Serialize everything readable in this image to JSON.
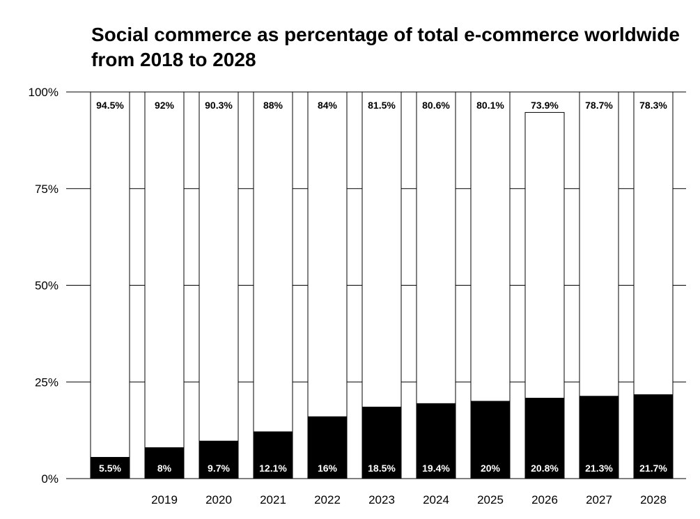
{
  "chart_data": {
    "type": "bar",
    "stacked": true,
    "percent": true,
    "title": "Social commerce as percentage of total e-commerce worldwide from 2018 to 2028",
    "categories": [
      "",
      "2019",
      "2020",
      "2021",
      "2022",
      "2023",
      "2024",
      "2025",
      "2026",
      "2027",
      "2028"
    ],
    "series": [
      {
        "color": "#000000",
        "values": [
          5.5,
          8,
          9.7,
          12.1,
          16,
          18.5,
          19.4,
          20,
          20.8,
          21.3,
          21.7
        ],
        "labels": [
          "5.5%",
          "8%",
          "9.7%",
          "12.1%",
          "16%",
          "18.5%",
          "19.4%",
          "20%",
          "20.8%",
          "21.3%",
          "21.7%"
        ],
        "label_color": "#ffffff"
      },
      {
        "color": "#ffffff",
        "values": [
          94.5,
          92,
          90.3,
          88,
          84,
          81.5,
          80.6,
          80.1,
          73.9,
          78.7,
          78.3
        ],
        "labels": [
          "94.5%",
          "92%",
          "90.3%",
          "88%",
          "84%",
          "81.5%",
          "80.6%",
          "80.1%",
          "73.9%",
          "78.7%",
          "78.3%"
        ],
        "label_color": "#000000"
      }
    ],
    "ylim": [
      0,
      100
    ],
    "yticks": [
      0,
      25,
      50,
      75,
      100
    ],
    "ytick_labels": [
      "0%",
      "25%",
      "50%",
      "75%",
      "100%"
    ],
    "xlabel": "",
    "ylabel": "",
    "grid": true
  }
}
